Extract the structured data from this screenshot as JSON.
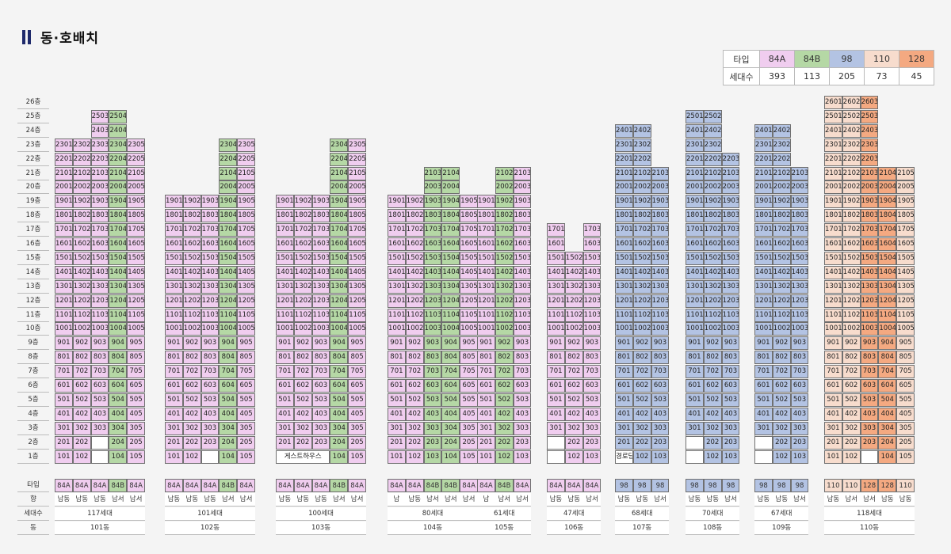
{
  "title": "동·호배치",
  "colors": {
    "84A": "#f0cdef",
    "84B": "#b5d8a5",
    "98": "#b3c3e3",
    "110": "#f7dccd",
    "128": "#f4a981",
    "x": "#ffffff"
  },
  "legend": {
    "header_type": "타입",
    "header_count": "세대수",
    "types": [
      "84A",
      "84B",
      "98",
      "110",
      "128"
    ],
    "counts": [
      "393",
      "113",
      "205",
      "73",
      "45"
    ]
  },
  "floor_labels": [
    "26층",
    "25층",
    "24층",
    "23층",
    "22층",
    "21층",
    "20층",
    "19층",
    "18층",
    "17층",
    "16층",
    "15층",
    "14층",
    "13층",
    "12층",
    "11층",
    "10층",
    "9층",
    "8층",
    "7층",
    "6층",
    "5층",
    "4층",
    "3층",
    "2층",
    "1층"
  ],
  "footer_headers": {
    "type": "타입",
    "direction": "향",
    "units": "세대수",
    "building": "동"
  },
  "buildings": [
    {
      "name": "101동",
      "units": "117세대",
      "types": [
        "84A",
        "84A",
        "84A",
        "84B",
        "84A"
      ],
      "dirs": [
        "남동",
        "남동",
        "남동",
        "남서",
        "남서"
      ],
      "top": [
        23,
        23,
        25,
        25,
        23
      ],
      "top_label": {
        "2": 25,
        "3": 25
      },
      "special": {
        "1": [
          "101",
          "102",
          "X",
          "104",
          "105"
        ],
        "2": [
          "201",
          "202",
          "X",
          "204",
          "205"
        ]
      },
      "gaps": {
        "0": [
          24,
          25
        ],
        "1": [
          24,
          25
        ],
        "4": [
          24,
          25
        ]
      }
    },
    {
      "name": "102동",
      "units": "101세대",
      "types": [
        "84A",
        "84A",
        "84A",
        "84B",
        "84A"
      ],
      "dirs": [
        "남동",
        "남동",
        "남동",
        "남서",
        "남서"
      ],
      "top": [
        19,
        19,
        19,
        23,
        23
      ],
      "special": {
        "1": [
          "101",
          "102",
          "X",
          "104",
          "105"
        ]
      }
    },
    {
      "name": "103동",
      "units": "100세대",
      "types": [
        "84A",
        "84A",
        "84A",
        "84B",
        "84A"
      ],
      "dirs": [
        "남동",
        "남동",
        "남동",
        "남서",
        "남서"
      ],
      "top": [
        19,
        19,
        19,
        23,
        23
      ],
      "special": {
        "1": [
          "G",
          "G",
          "G",
          "104",
          "105"
        ]
      },
      "guest": "게스트하우스"
    },
    {
      "name": "104동",
      "units": "80세대",
      "types": [
        "84A",
        "84A",
        "84B",
        "84B",
        "84A"
      ],
      "dirs": [
        "남",
        "남동",
        "남서",
        "남서",
        "남서"
      ],
      "top": [
        19,
        19,
        21,
        21,
        19
      ],
      "custom_nums": "104",
      "special": {
        "1": [
          "101",
          "102",
          "103",
          "104",
          "105"
        ]
      }
    },
    {
      "name": "105동",
      "units": "61세대",
      "types": [
        "84A",
        "84B",
        "84A"
      ],
      "dirs": [
        "남",
        "남서",
        "남서"
      ],
      "top": [
        19,
        21,
        21
      ],
      "num_offset": 0
    },
    {
      "name": "106동",
      "units": "47세대",
      "types": [
        "84A",
        "84A",
        "84A"
      ],
      "dirs": [
        "남동",
        "남동",
        "남서"
      ],
      "top": [
        17,
        15,
        17
      ],
      "special": {
        "1": [
          "X",
          "102",
          "103"
        ],
        "2": [
          "X",
          "202",
          "203"
        ]
      }
    },
    {
      "name": "107동",
      "units": "68세대",
      "types": [
        "98",
        "98",
        "98"
      ],
      "dirs": [
        "남동",
        "남동",
        "남서"
      ],
      "top": [
        24,
        24,
        21
      ],
      "special": {
        "1": [
          "경로당",
          "102",
          "103"
        ]
      }
    },
    {
      "name": "108동",
      "units": "70세대",
      "types": [
        "98",
        "98",
        "98"
      ],
      "dirs": [
        "남동",
        "남동",
        "남서"
      ],
      "top": [
        25,
        25,
        22
      ],
      "special": {
        "1": [
          "X",
          "102",
          "103"
        ],
        "2": [
          "X",
          "202",
          "203"
        ]
      }
    },
    {
      "name": "109동",
      "units": "67세대",
      "types": [
        "98",
        "98",
        "98"
      ],
      "dirs": [
        "남동",
        "남동",
        "남서"
      ],
      "top": [
        24,
        24,
        21
      ],
      "special": {
        "1": [
          "X",
          "102",
          "103"
        ],
        "2": [
          "X",
          "202",
          "203"
        ]
      }
    },
    {
      "name": "110동",
      "units": "118세대",
      "types": [
        "110",
        "110",
        "128",
        "128",
        "110"
      ],
      "dirs": [
        "남동",
        "남서",
        "남서",
        "남동",
        "남동"
      ],
      "top": [
        26,
        26,
        26,
        21,
        21
      ],
      "special": {
        "1": [
          "101",
          "102",
          "X",
          "104",
          "105"
        ]
      }
    }
  ]
}
